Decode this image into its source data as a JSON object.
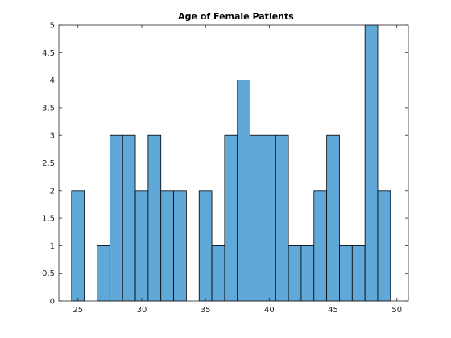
{
  "chart_data": {
    "type": "bar",
    "title": "Age of Female Patients",
    "xlabel": "",
    "ylabel": "",
    "xlim": [
      23.5,
      50.9
    ],
    "ylim": [
      0,
      5
    ],
    "grid": false,
    "legend": "none",
    "bin_width": 1,
    "bin_edges": [
      24.5,
      25.5,
      26.5,
      27.5,
      28.5,
      29.5,
      30.5,
      31.5,
      32.5,
      33.5,
      34.5,
      35.5,
      36.5,
      37.5,
      38.5,
      39.5,
      40.5,
      41.5,
      42.5,
      43.5,
      44.5,
      45.5,
      46.5,
      47.5,
      48.5,
      49.5
    ],
    "values": [
      2,
      0,
      1,
      3,
      3,
      2,
      3,
      2,
      2,
      0,
      2,
      1,
      3,
      4,
      3,
      3,
      3,
      1,
      1,
      2,
      3,
      1,
      1,
      5,
      2
    ],
    "x_ticks": [
      25,
      30,
      35,
      40,
      45,
      50
    ],
    "x_tick_labels": [
      "25",
      "30",
      "35",
      "40",
      "45",
      "50"
    ],
    "y_ticks": [
      0,
      0.5,
      1,
      1.5,
      2,
      2.5,
      3,
      3.5,
      4,
      4.5,
      5
    ],
    "y_tick_labels": [
      "0",
      "0.5",
      "1",
      "1.5",
      "2",
      "2.5",
      "3",
      "3.5",
      "4",
      "4.5",
      "5"
    ],
    "colors": {
      "bar_fill": "#5fa8d8",
      "bar_edge": "#000000",
      "axes": "#262626"
    }
  }
}
